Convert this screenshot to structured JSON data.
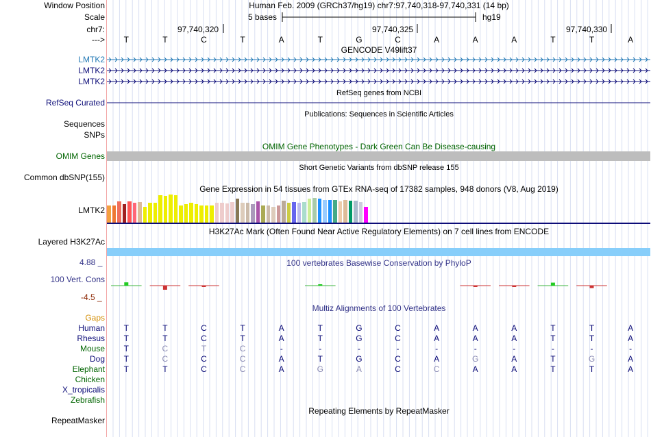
{
  "header": {
    "window_position_label": "Window Position",
    "window_position_value": "Human Feb. 2009 (GRCh37/hg19)   chr7:97,740,318-97,740,331 (14 bp)",
    "scale_label": "Scale",
    "scale_text": "5 bases",
    "scale_assembly": "hg19",
    "chrom_label": "chr7:",
    "strand_label": "--->",
    "positions": [
      "97,740,320",
      "97,740,325",
      "97,740,330"
    ]
  },
  "sequence": [
    "T",
    "T",
    "C",
    "T",
    "A",
    "T",
    "G",
    "C",
    "A",
    "A",
    "A",
    "T",
    "T",
    "A"
  ],
  "gencode": {
    "title": "GENCODE V49lift37",
    "tracks": [
      {
        "label": "LMTK2",
        "color": "#1f77b4"
      },
      {
        "label": "LMTK2",
        "color": "#0c0c78"
      },
      {
        "label": "LMTK2",
        "color": "#0c0c78"
      }
    ]
  },
  "refseq": {
    "title": "RefSeq genes from NCBI",
    "label": "RefSeq Curated"
  },
  "publications": {
    "title": "Publications: Sequences in Scientific Articles",
    "labels": [
      "Sequences",
      "SNPs"
    ]
  },
  "omim": {
    "title": "OMIM Gene Phenotypes - Dark Green Can Be Disease-causing",
    "label": "OMIM Genes"
  },
  "dbsnp": {
    "title": "Short Genetic Variants from dbSNP release 155",
    "label": "Common dbSNP(155)"
  },
  "gtex": {
    "title": "Gene Expression in 54 tissues from GTEx RNA-seq of 17382 samples, 948 donors (V8, Aug 2019)",
    "label": "LMTK2",
    "bars": [
      {
        "v": 0.6,
        "c": "#f4a040"
      },
      {
        "v": 0.62,
        "c": "#ee7733"
      },
      {
        "v": 0.75,
        "c": "#f06e5b"
      },
      {
        "v": 0.65,
        "c": "#a02020"
      },
      {
        "v": 0.75,
        "c": "#ff5555"
      },
      {
        "v": 0.7,
        "c": "#ff6677"
      },
      {
        "v": 0.72,
        "c": "#ddbb99"
      },
      {
        "v": 0.55,
        "c": "#eeee00"
      },
      {
        "v": 0.7,
        "c": "#eeee00"
      },
      {
        "v": 0.7,
        "c": "#eeee00"
      },
      {
        "v": 0.98,
        "c": "#eeee00"
      },
      {
        "v": 0.95,
        "c": "#eeee00"
      },
      {
        "v": 1.0,
        "c": "#eeee00"
      },
      {
        "v": 0.98,
        "c": "#eeee00"
      },
      {
        "v": 0.6,
        "c": "#eeee00"
      },
      {
        "v": 0.65,
        "c": "#eeee00"
      },
      {
        "v": 0.7,
        "c": "#eeee00"
      },
      {
        "v": 0.65,
        "c": "#eeee00"
      },
      {
        "v": 0.6,
        "c": "#eeee00"
      },
      {
        "v": 0.6,
        "c": "#eeee00"
      },
      {
        "v": 0.6,
        "c": "#eeee00"
      },
      {
        "v": 0.7,
        "c": "#eecccc"
      },
      {
        "v": 0.7,
        "c": "#eecccc"
      },
      {
        "v": 0.68,
        "c": "#eecccc"
      },
      {
        "v": 0.72,
        "c": "#eecccc"
      },
      {
        "v": 0.85,
        "c": "#887755"
      },
      {
        "v": 0.7,
        "c": "#ddccbb"
      },
      {
        "v": 0.7,
        "c": "#ccbbaa"
      },
      {
        "v": 0.65,
        "c": "#aa99bb"
      },
      {
        "v": 0.75,
        "c": "#aa55aa"
      },
      {
        "v": 0.6,
        "c": "#aaaa55"
      },
      {
        "v": 0.62,
        "c": "#ccbbaa"
      },
      {
        "v": 0.55,
        "c": "#ddccbb"
      },
      {
        "v": 0.6,
        "c": "#cc9999"
      },
      {
        "v": 0.78,
        "c": "#bbaa99"
      },
      {
        "v": 0.7,
        "c": "#cccc44"
      },
      {
        "v": 0.72,
        "c": "#6666ee"
      },
      {
        "v": 0.7,
        "c": "#bbbbee"
      },
      {
        "v": 0.72,
        "c": "#aaddcc"
      },
      {
        "v": 0.85,
        "c": "#ccee99"
      },
      {
        "v": 0.88,
        "c": "#aaccaa"
      },
      {
        "v": 0.85,
        "c": "#1e90ff"
      },
      {
        "v": 0.8,
        "c": "#99ccff"
      },
      {
        "v": 0.8,
        "c": "#1e90ff"
      },
      {
        "v": 0.8,
        "c": "#44aa88"
      },
      {
        "v": 0.75,
        "c": "#eeccaa"
      },
      {
        "v": 0.8,
        "c": "#ddbb99"
      },
      {
        "v": 0.78,
        "c": "#009966"
      },
      {
        "v": 0.78,
        "c": "#aabbcc"
      },
      {
        "v": 0.72,
        "c": "#ccccdd"
      },
      {
        "v": 0.55,
        "c": "#ff00ff"
      }
    ]
  },
  "h3k27ac": {
    "title": "H3K27Ac Mark (Often Found Near Active Regulatory Elements) on 7 cell lines from ENCODE",
    "label": "Layered H3K27Ac"
  },
  "conservation": {
    "title": "100 vertebrates Basewise Conservation by PhyloP",
    "label": "100 Vert. Cons",
    "max": "4.88 _",
    "min": "-4.5 _",
    "scores": [
      1.2,
      -1.5,
      -0.3,
      0,
      0,
      0.4,
      0,
      0,
      0,
      -0.15,
      -0.3,
      1.1,
      -0.9,
      0
    ]
  },
  "multiz": {
    "title": "Multiz Alignments of 100 Vertebrates",
    "gaps_label": "Gaps",
    "species": [
      {
        "name": "Human",
        "color": "#0c0c78",
        "bases": [
          "T",
          "T",
          "C",
          "T",
          "A",
          "T",
          "G",
          "C",
          "A",
          "A",
          "A",
          "T",
          "T",
          "A"
        ],
        "faded": []
      },
      {
        "name": "Rhesus",
        "color": "#0c0c78",
        "bases": [
          "T",
          "T",
          "C",
          "T",
          "A",
          "T",
          "G",
          "C",
          "A",
          "A",
          "A",
          "T",
          "T",
          "A"
        ],
        "faded": []
      },
      {
        "name": "Mouse",
        "color": "#006400",
        "bases": [
          "T",
          "C",
          "T",
          "C",
          "-",
          "-",
          "-",
          "-",
          "-",
          "-",
          "-",
          "-",
          "-",
          "-"
        ],
        "faded": [
          1,
          2,
          3
        ]
      },
      {
        "name": "Dog",
        "color": "#0c0c78",
        "bases": [
          "T",
          "C",
          "C",
          "C",
          "A",
          "T",
          "G",
          "C",
          "A",
          "G",
          "A",
          "T",
          "G",
          "A"
        ],
        "faded": [
          1,
          3,
          9,
          12
        ]
      },
      {
        "name": "Elephant",
        "color": "#006400",
        "bases": [
          "T",
          "T",
          "C",
          "C",
          "A",
          "G",
          "A",
          "C",
          "C",
          "A",
          "A",
          "T",
          "T",
          "A"
        ],
        "faded": [
          3,
          5,
          6,
          8
        ]
      },
      {
        "name": "Chicken",
        "color": "#006400",
        "bases": [],
        "faded": []
      },
      {
        "name": "X_tropicalis",
        "color": "#0c0c78",
        "bases": [],
        "faded": []
      },
      {
        "name": "Zebrafish",
        "color": "#006400",
        "bases": [],
        "faded": []
      }
    ]
  },
  "repeatmasker": {
    "title": "Repeating Elements by RepeatMasker",
    "label": "RepeatMasker"
  }
}
